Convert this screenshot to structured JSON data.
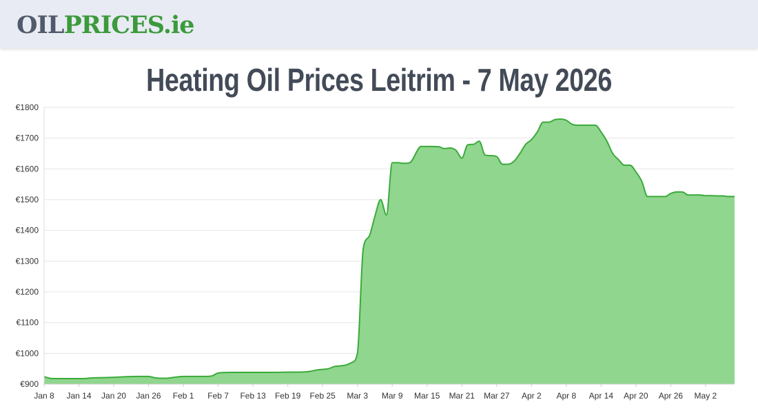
{
  "header": {
    "logo": {
      "part1": "OIL",
      "part2": "PRICES",
      "part3": ".ie"
    }
  },
  "page_title": "Heating Oil Prices Leitrim - 7 May 2026",
  "colors": {
    "header_bg": "#e8ebf3",
    "area_fill": "#90d68e",
    "line": "#3aaa3a",
    "grid": "#e6e6e6",
    "title": "#434b58"
  },
  "chart_data": {
    "type": "area",
    "title": "",
    "xlabel": "",
    "ylabel": "",
    "grid": true,
    "legend": "none",
    "ylim": [
      900,
      1800
    ],
    "y_ticks": [
      "€900",
      "€1000",
      "€1100",
      "€1200",
      "€1300",
      "€1400",
      "€1500",
      "€1600",
      "€1700",
      "€1800"
    ],
    "y_tick_values": [
      900,
      1000,
      1100,
      1200,
      1300,
      1400,
      1500,
      1600,
      1700,
      1800
    ],
    "x_ticks": [
      "Jan 8",
      "Jan 14",
      "Jan 20",
      "Jan 26",
      "Feb 1",
      "Feb 7",
      "Feb 13",
      "Feb 19",
      "Feb 25",
      "Mar 3",
      "Mar 9",
      "Mar 15",
      "Mar 21",
      "Mar 27",
      "Apr 2",
      "Apr 8",
      "Apr 14",
      "Apr 20",
      "Apr 26",
      "May 2"
    ],
    "x_tick_dates": [
      "2026-01-08",
      "2026-01-14",
      "2026-01-20",
      "2026-01-26",
      "2026-02-01",
      "2026-02-07",
      "2026-02-13",
      "2026-02-19",
      "2026-02-25",
      "2026-03-03",
      "2026-03-09",
      "2026-03-15",
      "2026-03-21",
      "2026-03-27",
      "2026-04-02",
      "2026-04-08",
      "2026-04-14",
      "2026-04-20",
      "2026-04-26",
      "2026-05-02"
    ],
    "x_range": [
      "2026-01-08",
      "2026-05-07"
    ],
    "series": [
      {
        "x": [
          "2026-01-08",
          "2026-01-09",
          "2026-01-10",
          "2026-01-11",
          "2026-01-13",
          "2026-01-15",
          "2026-01-16",
          "2026-01-18",
          "2026-01-20",
          "2026-01-21",
          "2026-01-22",
          "2026-01-24",
          "2026-01-26",
          "2026-01-27",
          "2026-01-28",
          "2026-01-29",
          "2026-01-30",
          "2026-02-01",
          "2026-02-03",
          "2026-02-05",
          "2026-02-06",
          "2026-02-07",
          "2026-02-09",
          "2026-02-13",
          "2026-02-17",
          "2026-02-19",
          "2026-02-21",
          "2026-02-23",
          "2026-02-24",
          "2026-02-25",
          "2026-02-26",
          "2026-02-27",
          "2026-02-28",
          "2026-03-01",
          "2026-03-02",
          "2026-03-03",
          "2026-03-04",
          "2026-03-05",
          "2026-03-06",
          "2026-03-07",
          "2026-03-08",
          "2026-03-09",
          "2026-03-10",
          "2026-03-11",
          "2026-03-12",
          "2026-03-14",
          "2026-03-15",
          "2026-03-17",
          "2026-03-18",
          "2026-03-19",
          "2026-03-20",
          "2026-03-21",
          "2026-03-22",
          "2026-03-23",
          "2026-03-24",
          "2026-03-25",
          "2026-03-26",
          "2026-03-27",
          "2026-03-28",
          "2026-03-29",
          "2026-03-30",
          "2026-03-31",
          "2026-04-01",
          "2026-04-02",
          "2026-04-03",
          "2026-04-04",
          "2026-04-05",
          "2026-04-06",
          "2026-04-07",
          "2026-04-08",
          "2026-04-09",
          "2026-04-10",
          "2026-04-11",
          "2026-04-12",
          "2026-04-13",
          "2026-04-14",
          "2026-04-15",
          "2026-04-16",
          "2026-04-17",
          "2026-04-18",
          "2026-04-19",
          "2026-04-20",
          "2026-04-21",
          "2026-04-22",
          "2026-04-23",
          "2026-04-24",
          "2026-04-25",
          "2026-04-26",
          "2026-04-27",
          "2026-04-28",
          "2026-04-29",
          "2026-04-30",
          "2026-05-01",
          "2026-05-02",
          "2026-05-03",
          "2026-05-04",
          "2026-05-05",
          "2026-05-06",
          "2026-05-07"
        ],
        "values": [
          924,
          919,
          918,
          918,
          918,
          918,
          920,
          921,
          922,
          923,
          924,
          925,
          925,
          921,
          919,
          919,
          921,
          925,
          925,
          925,
          927,
          936,
          938,
          938,
          938,
          939,
          939,
          942,
          946,
          948,
          950,
          957,
          959,
          962,
          970,
          1000,
          1340,
          1380,
          1445,
          1500,
          1450,
          1620,
          1620,
          1618,
          1620,
          1673,
          1673,
          1672,
          1666,
          1668,
          1660,
          1635,
          1678,
          1680,
          1690,
          1645,
          1643,
          1640,
          1615,
          1615,
          1625,
          1650,
          1680,
          1695,
          1720,
          1752,
          1752,
          1760,
          1762,
          1758,
          1745,
          1742,
          1742,
          1742,
          1742,
          1720,
          1690,
          1650,
          1630,
          1612,
          1612,
          1590,
          1560,
          1510,
          1510,
          1510,
          1510,
          1520,
          1525,
          1525,
          1515,
          1515,
          1515,
          1513,
          1513,
          1512,
          1512,
          1510,
          1510
        ]
      }
    ]
  }
}
